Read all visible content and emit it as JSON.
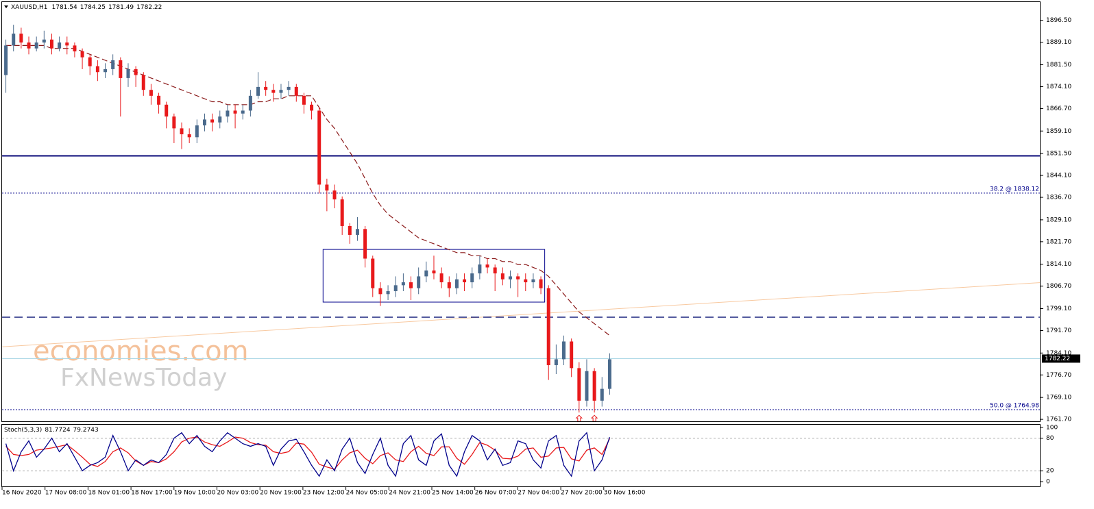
{
  "chart_data": {
    "type": "candlestick",
    "symbol": "XAUUSD,H1",
    "last_ohlc": [
      1781.54,
      1784.25,
      1781.49,
      1782.22
    ],
    "open": [
      1878,
      1888,
      1892,
      1889,
      1887,
      1889,
      1890,
      1887,
      1889,
      1888,
      1886,
      1884,
      1881,
      1879,
      1880,
      1883,
      1877,
      1880,
      1878,
      1873,
      1871,
      1868,
      1864,
      1860,
      1858,
      1857,
      1861,
      1863,
      1862,
      1864,
      1866,
      1865,
      1866,
      1871,
      1874,
      1873,
      1872,
      1873,
      1874,
      1871,
      1868,
      1866,
      1841,
      1839,
      1836,
      1827,
      1824,
      1826,
      1816,
      1806,
      1804,
      1805,
      1807,
      1808,
      1806,
      1810,
      1812,
      1811,
      1808,
      1806,
      1809,
      1808,
      1811,
      1814,
      1813,
      1811,
      1809,
      1810,
      1809,
      1808,
      1809,
      1806,
      1780,
      1782,
      1788,
      1779,
      1768,
      1778,
      1768,
      1772
    ],
    "high": [
      1890,
      1895,
      1894,
      1891,
      1891,
      1893,
      1892,
      1891,
      1891,
      1889,
      1887,
      1885,
      1883,
      1882,
      1885,
      1884,
      1882,
      1881,
      1879,
      1875,
      1872,
      1869,
      1865,
      1862,
      1860,
      1863,
      1865,
      1865,
      1866,
      1868,
      1868,
      1868,
      1873,
      1879,
      1876,
      1875,
      1875,
      1876,
      1875,
      1872,
      1869,
      1867,
      1843,
      1841,
      1837,
      1828,
      1830,
      1827,
      1817,
      1808,
      1807,
      1810,
      1811,
      1810,
      1813,
      1815,
      1817,
      1813,
      1810,
      1811,
      1811,
      1813,
      1817,
      1816,
      1814,
      1813,
      1812,
      1811,
      1811,
      1811,
      1810,
      1807,
      1787,
      1790,
      1789,
      1781,
      1782,
      1779,
      1776,
      1784
    ],
    "low": [
      1872,
      1886,
      1887,
      1885,
      1886,
      1887,
      1885,
      1886,
      1885,
      1884,
      1880,
      1878,
      1876,
      1877,
      1878,
      1864,
      1874,
      1874,
      1871,
      1868,
      1865,
      1860,
      1855,
      1853,
      1855,
      1855,
      1859,
      1859,
      1860,
      1862,
      1860,
      1863,
      1864,
      1870,
      1871,
      1869,
      1870,
      1871,
      1869,
      1865,
      1863,
      1838,
      1832,
      1833,
      1824,
      1821,
      1822,
      1813,
      1803,
      1800,
      1802,
      1803,
      1805,
      1802,
      1804,
      1808,
      1809,
      1806,
      1803,
      1804,
      1805,
      1806,
      1809,
      1811,
      1805,
      1807,
      1806,
      1803,
      1805,
      1806,
      1804,
      1775,
      1777,
      1780,
      1776,
      1764,
      1766,
      1764,
      1766,
      1770
    ],
    "close": [
      1888,
      1892,
      1889,
      1887,
      1889,
      1890,
      1887,
      1889,
      1888,
      1886,
      1884,
      1881,
      1879,
      1880,
      1883,
      1877,
      1880,
      1878,
      1873,
      1871,
      1868,
      1864,
      1860,
      1858,
      1857,
      1861,
      1863,
      1862,
      1864,
      1866,
      1865,
      1866,
      1871,
      1874,
      1873,
      1872,
      1873,
      1874,
      1871,
      1868,
      1866,
      1841,
      1839,
      1836,
      1827,
      1824,
      1826,
      1816,
      1806,
      1804,
      1805,
      1807,
      1808,
      1806,
      1810,
      1812,
      1811,
      1808,
      1806,
      1809,
      1808,
      1811,
      1814,
      1813,
      1811,
      1809,
      1810,
      1809,
      1808,
      1809,
      1806,
      1780,
      1782,
      1788,
      1779,
      1768,
      1778,
      1768,
      1772,
      1782
    ],
    "bull_color": "#4a6a8c",
    "bear_color": "#e8191b",
    "ylim": [
      1760.8,
      1902.9
    ],
    "yticks": [
      {
        "value": 1896.5,
        "label": "1896.50"
      },
      {
        "value": 1889.1,
        "label": "1889.10"
      },
      {
        "value": 1881.5,
        "label": "1881.50"
      },
      {
        "value": 1874.1,
        "label": "1874.10"
      },
      {
        "value": 1866.7,
        "label": "1866.70"
      },
      {
        "value": 1859.1,
        "label": "1859.10"
      },
      {
        "value": 1851.5,
        "label": "1851.50"
      },
      {
        "value": 1844.1,
        "label": "1844.10"
      },
      {
        "value": 1836.7,
        "label": "1836.70"
      },
      {
        "value": 1829.1,
        "label": "1829.10"
      },
      {
        "value": 1821.7,
        "label": "1821.70"
      },
      {
        "value": 1814.1,
        "label": "1814.10"
      },
      {
        "value": 1806.7,
        "label": "1806.70"
      },
      {
        "value": 1799.1,
        "label": "1799.10"
      },
      {
        "value": 1791.7,
        "label": "1791.70"
      },
      {
        "value": 1784.1,
        "label": "1784.10"
      },
      {
        "value": 1776.7,
        "label": "1776.70"
      },
      {
        "value": 1769.1,
        "label": "1769.10"
      },
      {
        "value": 1761.7,
        "label": "1761.70"
      }
    ],
    "x_labels": [
      "16 Nov 2020",
      "17 Nov 08:00",
      "18 Nov 01:00",
      "18 Nov 17:00",
      "19 Nov 10:00",
      "20 Nov 03:00",
      "20 Nov 19:00",
      "23 Nov 12:00",
      "24 Nov 05:00",
      "24 Nov 21:00",
      "25 Nov 14:00",
      "26 Nov 07:00",
      "27 Nov 04:00",
      "27 Nov 20:00",
      "30 Nov 16:00"
    ],
    "ma": {
      "color": "#8b1a1a",
      "values": [
        1888,
        1888,
        1888,
        1888,
        1888,
        1888,
        1887,
        1887,
        1887,
        1887,
        1886,
        1885,
        1884,
        1883,
        1882,
        1881,
        1880,
        1879,
        1878,
        1877,
        1876,
        1875,
        1874,
        1873,
        1872,
        1871,
        1870,
        1869,
        1869,
        1868,
        1868,
        1868,
        1868,
        1869,
        1869,
        1870,
        1870,
        1871,
        1871,
        1871,
        1871,
        1867,
        1863,
        1860,
        1856,
        1852,
        1848,
        1843,
        1838,
        1834,
        1831,
        1829,
        1827,
        1825,
        1823,
        1822,
        1821,
        1820,
        1819,
        1818,
        1818,
        1817,
        1817,
        1816,
        1816,
        1815,
        1815,
        1814,
        1814,
        1813,
        1812,
        1810,
        1807,
        1804,
        1801,
        1798,
        1796,
        1794,
        1792,
        1790
      ]
    },
    "levels": [
      {
        "value": 1850.7,
        "color": "#0a0a78",
        "style": "solid"
      },
      {
        "value": 1796.2,
        "color": "#1a237e",
        "style": "dashed"
      }
    ],
    "fib": [
      {
        "value": 1838.12,
        "label": "38.2 @ 1838.12"
      },
      {
        "value": 1764.98,
        "label": "50.0 @ 1764.98"
      }
    ],
    "fib_color": "#00008b",
    "current_color": "#add8e6",
    "trendline": {
      "values": [
        1786.2,
        1807.9
      ],
      "color": "#f8c9a0"
    },
    "box": {
      "candles": [
        42,
        70
      ],
      "range": [
        1801.3,
        1819.1
      ],
      "color": "#00008b"
    },
    "arrows": {
      "candles": [
        75,
        77
      ],
      "color": "#e8191b"
    },
    "watermark": [
      "economies.com",
      "FxNewsToday"
    ],
    "stoch": {
      "title": "Stoch(5,3,3)",
      "ylim": [
        -10,
        106
      ],
      "yticks": [
        0,
        20,
        80,
        100
      ],
      "levels": [
        20,
        80
      ],
      "k": {
        "color": "#00008b",
        "values": [
          70,
          20,
          55,
          75,
          45,
          60,
          80,
          55,
          70,
          45,
          20,
          30,
          35,
          45,
          85,
          55,
          20,
          40,
          30,
          40,
          35,
          50,
          80,
          90,
          70,
          85,
          65,
          55,
          75,
          90,
          80,
          70,
          65,
          70,
          65,
          30,
          60,
          75,
          78,
          55,
          30,
          10,
          40,
          20,
          60,
          80,
          35,
          15,
          50,
          80,
          30,
          10,
          70,
          85,
          40,
          30,
          75,
          88,
          30,
          10,
          55,
          85,
          75,
          40,
          60,
          30,
          35,
          75,
          70,
          40,
          25,
          75,
          85,
          30,
          10,
          75,
          90,
          20,
          40,
          81.7724
        ]
      },
      "d": {
        "color": "#e8191b",
        "values": [
          65,
          50,
          48,
          50,
          58,
          60,
          62,
          65,
          68,
          57,
          45,
          32,
          28,
          37,
          55,
          62,
          53,
          38,
          30,
          37,
          35,
          42,
          55,
          73,
          80,
          82,
          73,
          68,
          65,
          73,
          82,
          80,
          72,
          68,
          67,
          55,
          52,
          55,
          71,
          69,
          54,
          32,
          27,
          23,
          40,
          53,
          58,
          43,
          33,
          48,
          53,
          40,
          37,
          55,
          65,
          52,
          48,
          64,
          64,
          43,
          32,
          50,
          72,
          67,
          58,
          43,
          42,
          47,
          60,
          62,
          45,
          47,
          62,
          63,
          42,
          38,
          58,
          62,
          50,
          79.2743
        ]
      }
    }
  }
}
